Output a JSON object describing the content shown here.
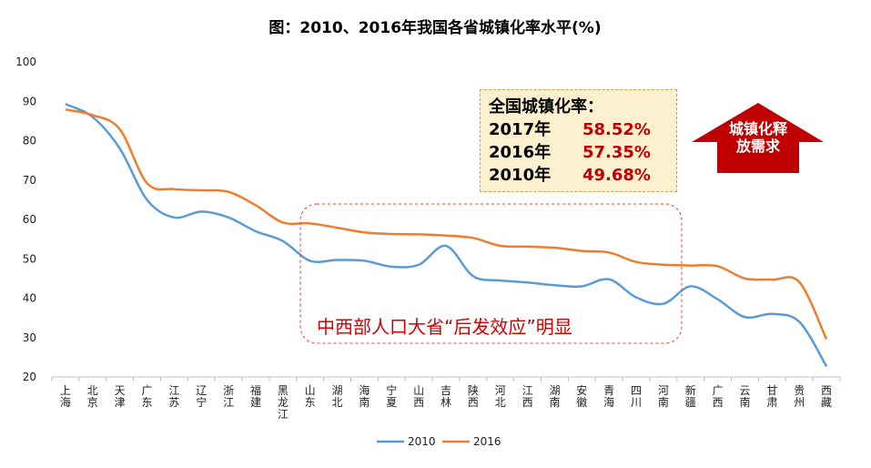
{
  "chart_data": {
    "type": "line",
    "title": "图：2010、2016年我国各省城镇化率水平(%)",
    "ylim": [
      20,
      100
    ],
    "yticks": [
      20,
      30,
      40,
      50,
      60,
      70,
      80,
      90,
      100
    ],
    "categories": [
      "上海",
      "北京",
      "天津",
      "广东",
      "江苏",
      "辽宁",
      "浙江",
      "福建",
      "黑龙江",
      "山东",
      "湖北",
      "海南",
      "宁夏",
      "山西",
      "吉林",
      "陕西",
      "河北",
      "江西",
      "湖南",
      "安徽",
      "青海",
      "四川",
      "河南",
      "新疆",
      "广西",
      "云南",
      "甘肃",
      "贵州",
      "西藏"
    ],
    "series": [
      {
        "name": "2010",
        "color": "#5b9bd5",
        "values": [
          89.3,
          86,
          78,
          65,
          60.5,
          62,
          60.5,
          57,
          54.5,
          49.5,
          49.7,
          49.5,
          48,
          48.5,
          53.3,
          45.6,
          44.5,
          44,
          43.3,
          43,
          44.8,
          40.2,
          38.6,
          43,
          39.7,
          35.2,
          36,
          34,
          22.7
        ]
      },
      {
        "name": "2016",
        "color": "#ed7d31",
        "values": [
          87.9,
          86.5,
          82.9,
          69.2,
          67.7,
          67.4,
          67,
          63.6,
          59.2,
          59,
          57.9,
          56.7,
          56.3,
          56.2,
          55.9,
          55.3,
          53.3,
          53.1,
          52.8,
          52,
          51.6,
          49.2,
          48.5,
          48.3,
          48.1,
          45,
          44.7,
          44.1,
          29.6
        ]
      }
    ],
    "annotations": {
      "box_title": "全国城镇化率：",
      "box_rows": [
        {
          "year": "2017年",
          "value": "58.52%"
        },
        {
          "year": "2016年",
          "value": "57.35%"
        },
        {
          "year": "2010年",
          "value": "49.68%"
        }
      ],
      "arrow_line1": "城镇化释",
      "arrow_line2": "放需求",
      "region_label": "中西部人口大省“后发效应”明显",
      "arrow_color": "#c00000",
      "region_color": "#d40000"
    }
  }
}
